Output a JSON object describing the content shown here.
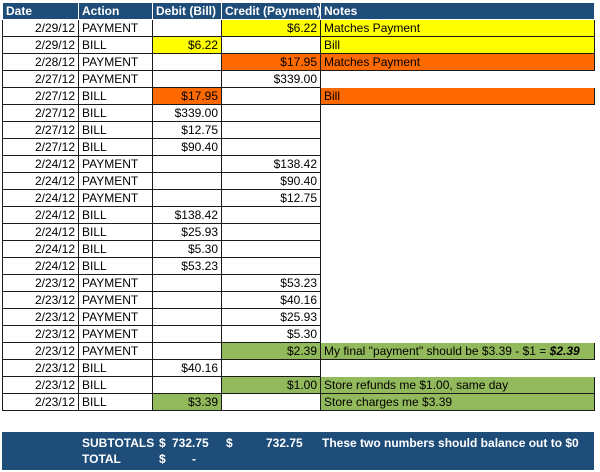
{
  "headers": {
    "date": "Date",
    "action": "Action",
    "debit": "Debit (Bill)",
    "credit": "Credit (Payment)",
    "notes": "Notes"
  },
  "colors": {
    "header_bg": "#1f4d7a",
    "yellow": "#ffff00",
    "orange": "#ff6a00",
    "green": "#92b95b"
  },
  "rows": [
    {
      "date": "2/29/12",
      "action": "PAYMENT",
      "debit": "",
      "credit": "$6.22",
      "notes": "Matches Payment",
      "credit_hl": "yellow",
      "notes_hl": "yellow"
    },
    {
      "date": "2/29/12",
      "action": "BILL",
      "debit": "$6.22",
      "credit": "",
      "notes": "Bill",
      "debit_hl": "yellow",
      "notes_hl": "yellow"
    },
    {
      "date": "2/28/12",
      "action": "PAYMENT",
      "debit": "",
      "credit": "$17.95",
      "notes": "Matches Payment",
      "credit_hl": "orange",
      "notes_hl": "orange"
    },
    {
      "date": "2/27/12",
      "action": "PAYMENT",
      "debit": "",
      "credit": "$339.00",
      "notes": ""
    },
    {
      "date": "2/27/12",
      "action": "BILL",
      "debit": "$17.95",
      "credit": "",
      "notes": "Bill",
      "debit_hl": "orange",
      "notes_hl": "orange"
    },
    {
      "date": "2/27/12",
      "action": "BILL",
      "debit": "$339.00",
      "credit": "",
      "notes": ""
    },
    {
      "date": "2/27/12",
      "action": "BILL",
      "debit": "$12.75",
      "credit": "",
      "notes": ""
    },
    {
      "date": "2/27/12",
      "action": "BILL",
      "debit": "$90.40",
      "credit": "",
      "notes": ""
    },
    {
      "date": "2/24/12",
      "action": "PAYMENT",
      "debit": "",
      "credit": "$138.42",
      "notes": ""
    },
    {
      "date": "2/24/12",
      "action": "PAYMENT",
      "debit": "",
      "credit": "$90.40",
      "notes": ""
    },
    {
      "date": "2/24/12",
      "action": "PAYMENT",
      "debit": "",
      "credit": "$12.75",
      "notes": ""
    },
    {
      "date": "2/24/12",
      "action": "BILL",
      "debit": "$138.42",
      "credit": "",
      "notes": ""
    },
    {
      "date": "2/24/12",
      "action": "BILL",
      "debit": "$25.93",
      "credit": "",
      "notes": ""
    },
    {
      "date": "2/24/12",
      "action": "BILL",
      "debit": "$5.30",
      "credit": "",
      "notes": ""
    },
    {
      "date": "2/24/12",
      "action": "BILL",
      "debit": "$53.23",
      "credit": "",
      "notes": ""
    },
    {
      "date": "2/23/12",
      "action": "PAYMENT",
      "debit": "",
      "credit": "$53.23",
      "notes": ""
    },
    {
      "date": "2/23/12",
      "action": "PAYMENT",
      "debit": "",
      "credit": "$40.16",
      "notes": ""
    },
    {
      "date": "2/23/12",
      "action": "PAYMENT",
      "debit": "",
      "credit": "$25.93",
      "notes": ""
    },
    {
      "date": "2/23/12",
      "action": "PAYMENT",
      "debit": "",
      "credit": "$5.30",
      "notes": ""
    },
    {
      "date": "2/23/12",
      "action": "PAYMENT",
      "debit": "",
      "credit": "$2.39",
      "notes": "My final \"payment\" should be $3.39 - $1 = ",
      "notes_emph": "$2.39",
      "credit_hl": "green",
      "notes_hl": "green"
    },
    {
      "date": "2/23/12",
      "action": "BILL",
      "debit": "$40.16",
      "credit": "",
      "notes": ""
    },
    {
      "date": "2/23/12",
      "action": "BILL",
      "debit": "",
      "credit": "$1.00",
      "notes": "Store refunds me $1.00, same day",
      "credit_hl": "green",
      "notes_hl": "green"
    },
    {
      "date": "2/23/12",
      "action": "BILL",
      "debit": "$3.39",
      "credit": "",
      "notes": "Store charges me $3.39",
      "debit_hl": "green",
      "notes_hl": "green"
    }
  ],
  "summary": {
    "subtotals_label": "SUBTOTALS",
    "debit_currency": "$",
    "debit_total": "732.75",
    "credit_currency": "$",
    "credit_total": "732.75",
    "note": "These two numbers should balance out to $0",
    "total_label": "TOTAL",
    "total_currency": "$",
    "total_value": "-"
  }
}
